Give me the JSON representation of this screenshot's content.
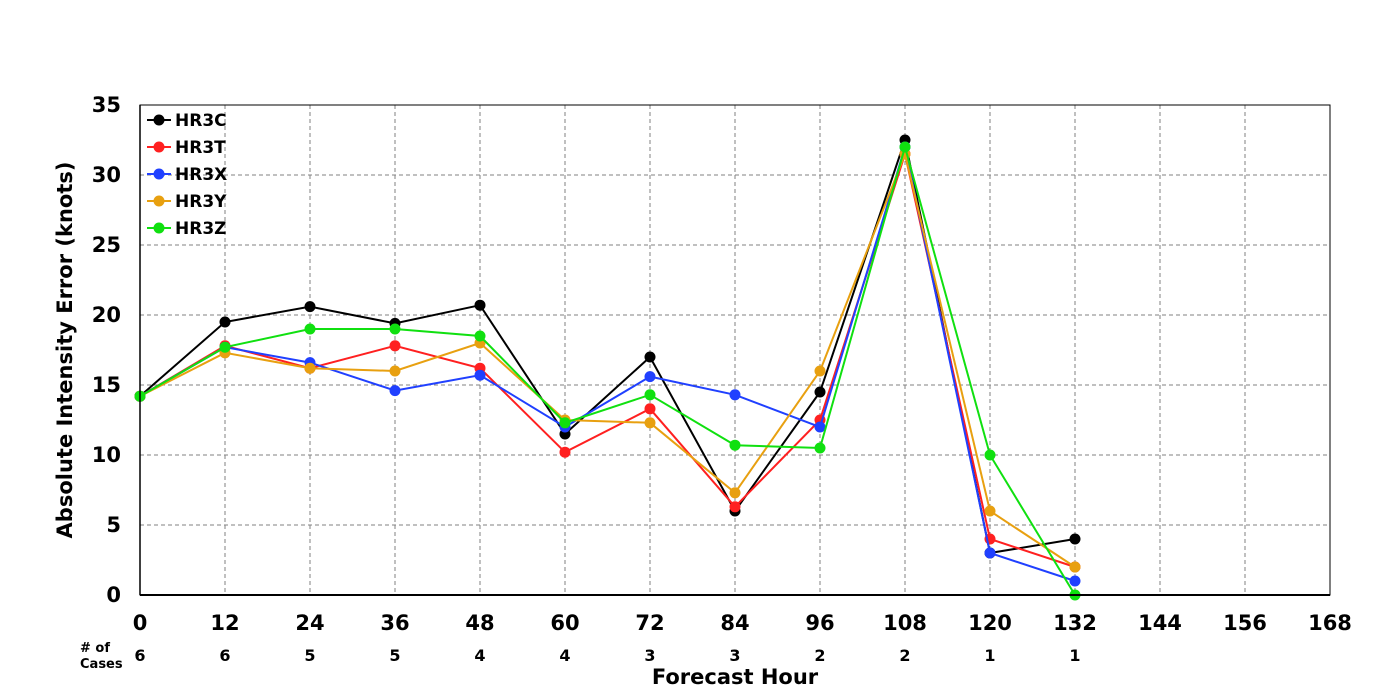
{
  "chart_data": {
    "type": "line",
    "xlabel": "Forecast Hour",
    "ylabel": "Absolute Intensity Error (knots)",
    "xlim": [
      0,
      168
    ],
    "ylim": [
      0,
      35
    ],
    "x_ticks": [
      0,
      12,
      24,
      36,
      48,
      60,
      72,
      84,
      96,
      108,
      120,
      132,
      144,
      156,
      168
    ],
    "y_ticks": [
      0,
      5,
      10,
      15,
      20,
      25,
      30,
      35
    ],
    "grid": true,
    "legend_position": "top-left",
    "cases_label_line1": "# of",
    "cases_label_line2": "Cases",
    "cases": [
      6,
      6,
      5,
      5,
      4,
      4,
      3,
      3,
      2,
      2,
      1,
      1
    ],
    "x": [
      0,
      12,
      24,
      36,
      48,
      60,
      72,
      84,
      96,
      108,
      120,
      132
    ],
    "series": [
      {
        "name": "HR3C",
        "color": "#000000",
        "values": [
          14.2,
          19.5,
          20.6,
          19.4,
          20.7,
          11.5,
          17.0,
          6.0,
          14.5,
          32.5,
          3.0,
          4.0
        ]
      },
      {
        "name": "HR3T",
        "color": "#ff2020",
        "values": [
          14.2,
          17.8,
          16.2,
          17.8,
          16.2,
          10.2,
          13.3,
          6.3,
          12.5,
          31.5,
          4.0,
          2.0
        ]
      },
      {
        "name": "HR3X",
        "color": "#2040ff",
        "values": [
          14.2,
          17.7,
          16.6,
          14.6,
          15.7,
          12.0,
          15.6,
          14.3,
          12.0,
          32.0,
          3.0,
          1.0
        ]
      },
      {
        "name": "HR3Y",
        "color": "#e8a010",
        "values": [
          14.2,
          17.3,
          16.2,
          16.0,
          18.0,
          12.5,
          12.3,
          7.3,
          16.0,
          31.5,
          6.0,
          2.0
        ]
      },
      {
        "name": "HR3Z",
        "color": "#10e010",
        "values": [
          14.2,
          17.7,
          19.0,
          19.0,
          18.5,
          12.3,
          14.3,
          10.7,
          10.5,
          32.0,
          10.0,
          0.0
        ]
      }
    ]
  }
}
